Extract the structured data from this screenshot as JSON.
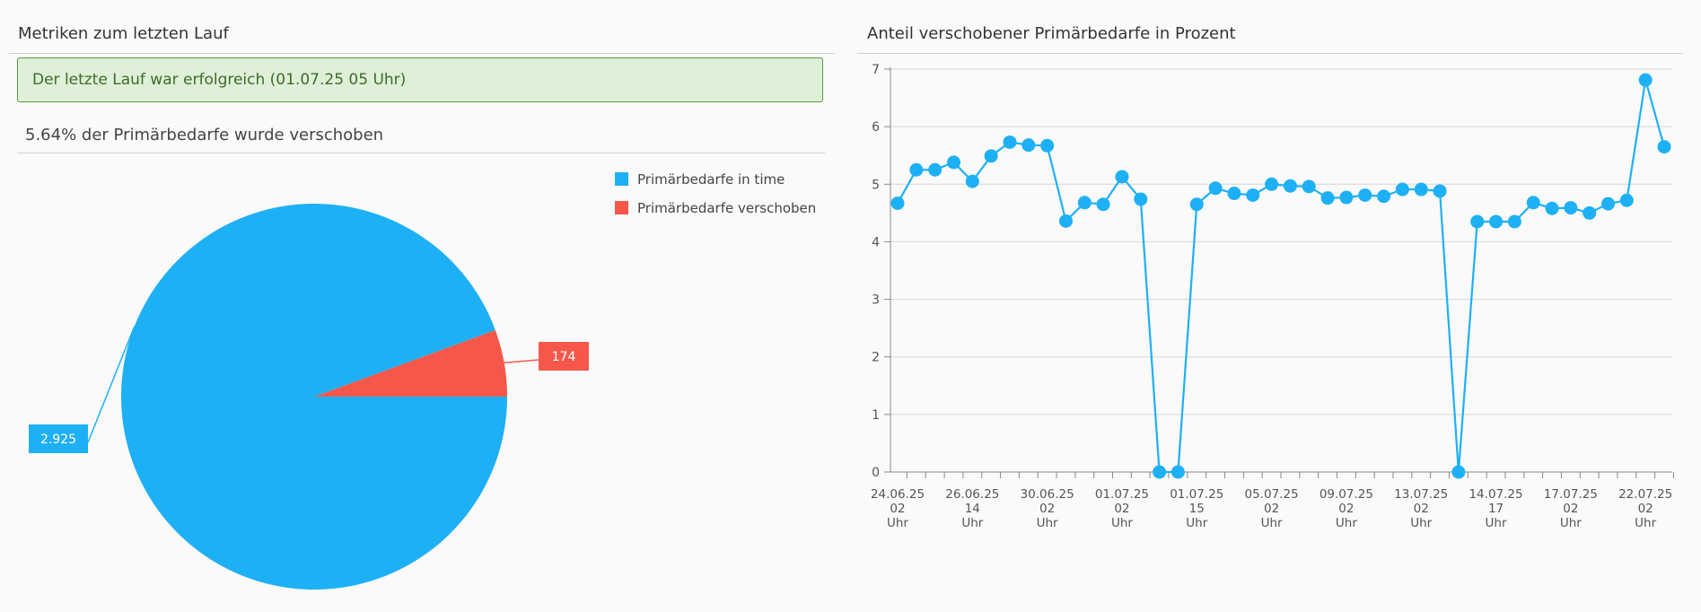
{
  "metrics_panel": {
    "title": "Metriken zum letzten Lauf",
    "status_message": "Der letzte Lauf war erfolgreich (01.07.25 05 Uhr)",
    "summary": "5.64% der Primärbedarfe wurde verschoben"
  },
  "trend_panel": {
    "title": "Anteil verschobener Primärbedarfe in Prozent"
  },
  "colors": {
    "in_time": "#1eb0f5",
    "shifted": "#f5584b",
    "status_bg": "#dff0d8",
    "status_border": "#5a9a3c"
  },
  "chart_data": [
    {
      "type": "pie",
      "slices": [
        {
          "name": "Primärbedarfe in time",
          "value": 2925,
          "label": "2.925",
          "color": "#1eb0f5"
        },
        {
          "name": "Primärbedarfe verschoben",
          "value": 174,
          "label": "174",
          "color": "#f5584b"
        }
      ],
      "legend": {
        "placement": "top-right",
        "entries": [
          "Primärbedarfe in time",
          "Primärbedarfe verschoben"
        ]
      }
    },
    {
      "type": "line",
      "title": "Anteil verschobener Primärbedarfe in Prozent",
      "ylim": [
        0,
        7
      ],
      "yticks": [
        0,
        1,
        2,
        3,
        4,
        5,
        6,
        7
      ],
      "grid": true,
      "series": [
        {
          "color": "#1eb0f5",
          "values": [
            4.67,
            5.25,
            5.25,
            5.38,
            5.05,
            5.49,
            5.73,
            5.68,
            5.67,
            4.36,
            4.68,
            4.65,
            5.13,
            4.74,
            0,
            0,
            4.65,
            4.93,
            4.84,
            4.81,
            5.0,
            4.97,
            4.96,
            4.76,
            4.77,
            4.81,
            4.79,
            4.91,
            4.91,
            4.88,
            0,
            4.35,
            4.35,
            4.35,
            4.68,
            4.58,
            4.59,
            4.5,
            4.66,
            4.72,
            6.81,
            5.65
          ]
        }
      ],
      "x_tick_count": 42,
      "x_labels": [
        {
          "index": 0,
          "lines": [
            "24.06.25",
            "02",
            "Uhr"
          ]
        },
        {
          "index": 4,
          "lines": [
            "26.06.25",
            "14",
            "Uhr"
          ]
        },
        {
          "index": 8,
          "lines": [
            "30.06.25",
            "02",
            "Uhr"
          ]
        },
        {
          "index": 12,
          "lines": [
            "01.07.25",
            "02",
            "Uhr"
          ]
        },
        {
          "index": 16,
          "lines": [
            "01.07.25",
            "15",
            "Uhr"
          ]
        },
        {
          "index": 20,
          "lines": [
            "05.07.25",
            "02",
            "Uhr"
          ]
        },
        {
          "index": 24,
          "lines": [
            "09.07.25",
            "02",
            "Uhr"
          ]
        },
        {
          "index": 28,
          "lines": [
            "13.07.25",
            "02",
            "Uhr"
          ]
        },
        {
          "index": 32,
          "lines": [
            "14.07.25",
            "17",
            "Uhr"
          ]
        },
        {
          "index": 36,
          "lines": [
            "17.07.25",
            "02",
            "Uhr"
          ]
        },
        {
          "index": 40,
          "lines": [
            "22.07.25",
            "02",
            "Uhr"
          ]
        }
      ]
    }
  ]
}
